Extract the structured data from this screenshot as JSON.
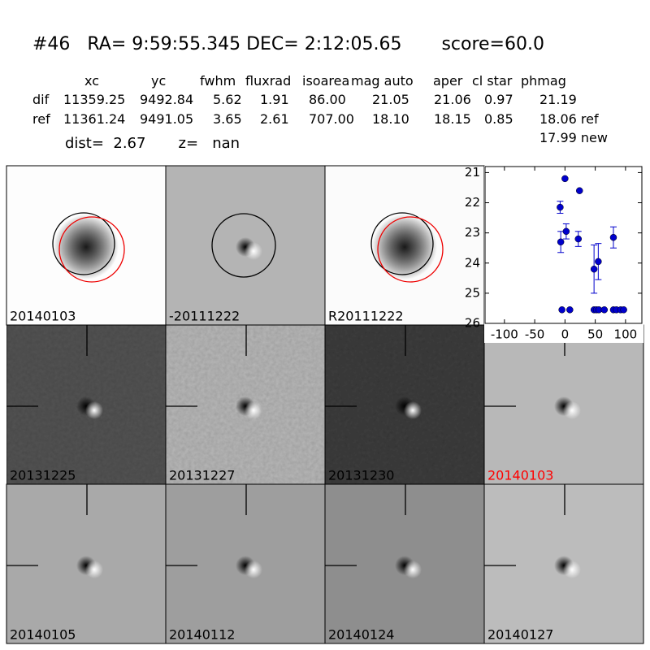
{
  "header": {
    "title": "#46   RA= 9:59:55.345 DEC= 2:12:05.65       score=60.0",
    "columns": [
      "xc",
      "yc",
      "fwhm",
      "fluxrad",
      "isoarea",
      "mag auto",
      "aper",
      "cl star",
      "phmag"
    ],
    "rows": [
      {
        "name": "dif",
        "cells": [
          "11359.25",
          "9492.84",
          "5.62",
          "1.91",
          "86.00",
          "21.05",
          "21.06",
          "0.97",
          "21.19"
        ]
      },
      {
        "name": "ref",
        "cells": [
          "11361.24",
          "9491.05",
          "3.65",
          "2.61",
          "707.00",
          "18.10",
          "18.15",
          "0.85",
          "18.06 ref"
        ]
      }
    ],
    "extra": "17.99 new",
    "dist": "dist=  2.67       z=   nan"
  },
  "panels": [
    {
      "label": "20140103"
    },
    {
      "label": "-20111222"
    },
    {
      "label": "R20111222"
    },
    {
      "label": "20131225"
    },
    {
      "label": "20131227"
    },
    {
      "label": "20131230"
    },
    {
      "label": "20140103",
      "color": "#ff0000"
    },
    {
      "label": "20140105"
    },
    {
      "label": "20140112"
    },
    {
      "label": "20140124"
    },
    {
      "label": "20140127"
    }
  ],
  "chart_data": {
    "type": "scatter",
    "x": [
      -8,
      -7,
      0,
      2,
      22,
      24,
      48,
      55,
      80,
      -5,
      8,
      48,
      52,
      56,
      65,
      80,
      85,
      92,
      97
    ],
    "series": [
      {
        "color": "#0000cc",
        "values": [
          22.15,
          23.3,
          21.2,
          22.95,
          23.2,
          21.6,
          24.2,
          23.95,
          23.15,
          25.55,
          25.55,
          25.55,
          25.55,
          25.55,
          25.55,
          25.55,
          25.55,
          25.55,
          25.55
        ],
        "errors": [
          0.2,
          0.35,
          null,
          0.25,
          0.25,
          null,
          0.8,
          0.6,
          0.35,
          null,
          null,
          null,
          null,
          null,
          null,
          null,
          null,
          null,
          null
        ]
      }
    ],
    "xlim": [
      -132,
      127
    ],
    "ylim": [
      20.8,
      26
    ],
    "y_inverted": true,
    "xticks": [
      -100,
      -50,
      0,
      50,
      100
    ],
    "yticks": [
      21,
      22,
      23,
      24,
      25,
      26
    ]
  }
}
